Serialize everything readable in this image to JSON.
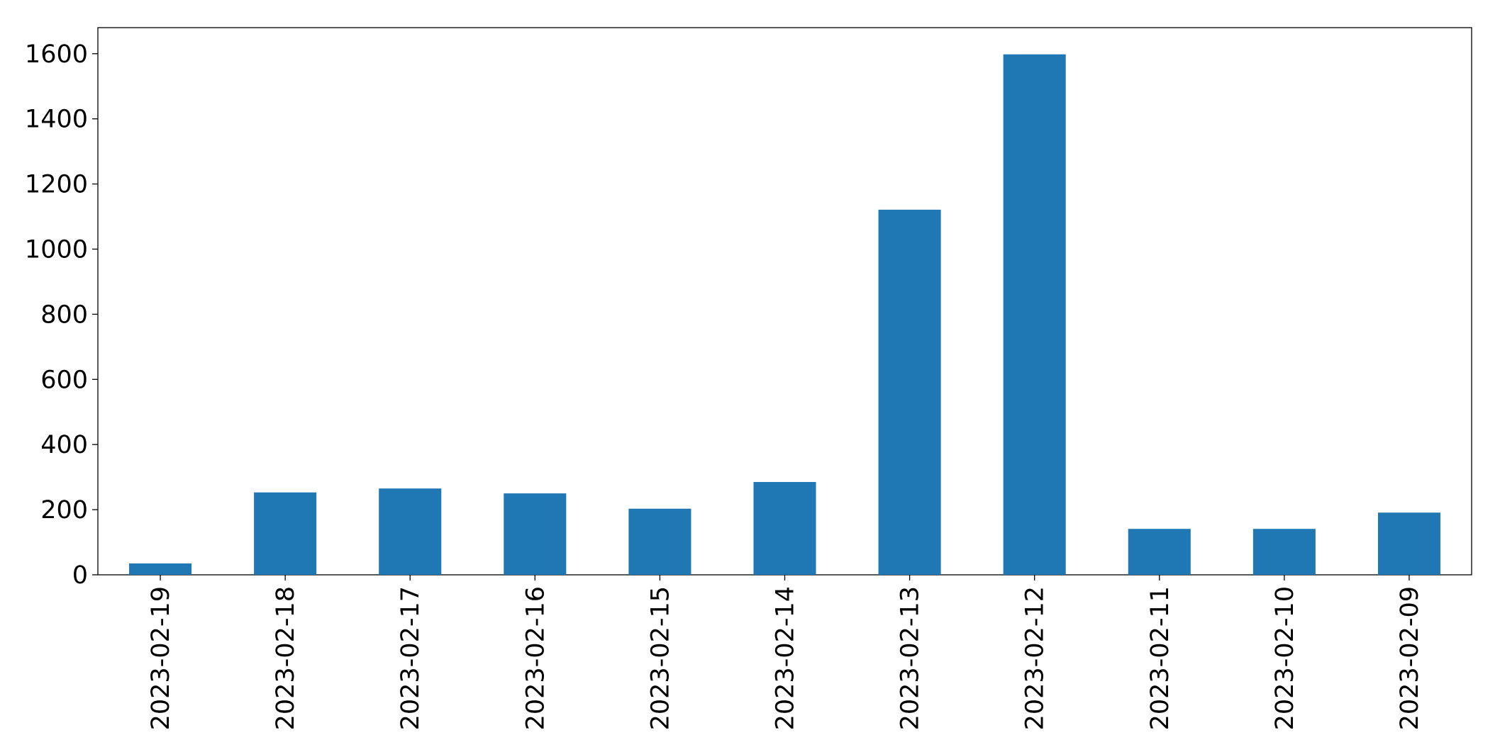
{
  "chart_data": {
    "type": "bar",
    "categories": [
      "2023-02-19",
      "2023-02-18",
      "2023-02-17",
      "2023-02-16",
      "2023-02-15",
      "2023-02-14",
      "2023-02-13",
      "2023-02-12",
      "2023-02-11",
      "2023-02-10",
      "2023-02-09"
    ],
    "values": [
      35,
      253,
      265,
      250,
      203,
      285,
      1121,
      1598,
      141,
      141,
      191
    ],
    "color": "#1f77b4",
    "ylim": [
      0,
      1680
    ],
    "yticks": [
      0,
      200,
      400,
      600,
      800,
      1000,
      1200,
      1400,
      1600
    ],
    "grid": false
  }
}
